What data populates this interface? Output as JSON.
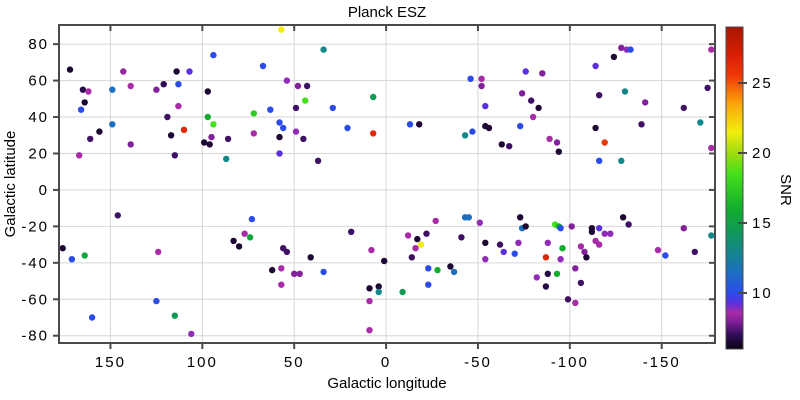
{
  "figure": {
    "title": "Planck ESZ",
    "xlabel": "Galactic longitude",
    "ylabel": "Galactic latitude",
    "colorbar_label": "SNR"
  },
  "chart_data": {
    "type": "scatter",
    "title": "Planck ESZ",
    "xlabel": "Galactic longitude",
    "ylabel": "Galactic latitude",
    "grid": true,
    "x_axis": {
      "min": -179,
      "max": 178,
      "reversed": true,
      "ticks": [
        150,
        100,
        50,
        0,
        -50,
        -100,
        -150
      ]
    },
    "y_axis": {
      "min": -84,
      "max": 90.5,
      "ticks": [
        -80,
        -60,
        -40,
        -20,
        0,
        20,
        40,
        60,
        80
      ]
    },
    "colorbar": {
      "label": "SNR",
      "min": 6,
      "max": 29,
      "ticks": [
        10,
        15,
        20,
        25
      ]
    },
    "colormap_stops": [
      [
        6,
        "#0b0210"
      ],
      [
        7,
        "#2e0d57"
      ],
      [
        8,
        "#83209b"
      ],
      [
        8.6,
        "#a82ba8"
      ],
      [
        9.3,
        "#5b30e0"
      ],
      [
        10,
        "#2a4ce8"
      ],
      [
        11.5,
        "#1d6fc0"
      ],
      [
        13,
        "#148789"
      ],
      [
        14.5,
        "#119a55"
      ],
      [
        16,
        "#13ad2d"
      ],
      [
        18.5,
        "#44e01a"
      ],
      [
        20,
        "#9fdc0e"
      ],
      [
        21.5,
        "#f2ee0a"
      ],
      [
        23.5,
        "#fba608"
      ],
      [
        25.5,
        "#f03807"
      ],
      [
        27,
        "#d81f05"
      ],
      [
        29,
        "#a81600"
      ]
    ],
    "points": [
      [
        172,
        66,
        6.5
      ],
      [
        143,
        65,
        8.3
      ],
      [
        114,
        65,
        6.5
      ],
      [
        107,
        65,
        9.3
      ],
      [
        94,
        74,
        10
      ],
      [
        165,
        55,
        6.8
      ],
      [
        162,
        54,
        8.6
      ],
      [
        149,
        55,
        11.5
      ],
      [
        139,
        57,
        8.6
      ],
      [
        125,
        55,
        8
      ],
      [
        121,
        58,
        7
      ],
      [
        113,
        58,
        10
      ],
      [
        97,
        54,
        6.5
      ],
      [
        164,
        48,
        6.5
      ],
      [
        166,
        44,
        10
      ],
      [
        113,
        46,
        8.6
      ],
      [
        119,
        40,
        7.2
      ],
      [
        97,
        40,
        16
      ],
      [
        94,
        36,
        18.5
      ],
      [
        149,
        36,
        11.5
      ],
      [
        110,
        33,
        26.5
      ],
      [
        156,
        32,
        6.5
      ],
      [
        161,
        28,
        7.2
      ],
      [
        117,
        30,
        6.5
      ],
      [
        139,
        25,
        8
      ],
      [
        99,
        26,
        6.5
      ],
      [
        96,
        25,
        6.5
      ],
      [
        95,
        29,
        8
      ],
      [
        167,
        19,
        8.6
      ],
      [
        115,
        19,
        7.2
      ],
      [
        57,
        88,
        21.5
      ],
      [
        34,
        77,
        13
      ],
      [
        67,
        68,
        10
      ],
      [
        54,
        60,
        8.8
      ],
      [
        48,
        57,
        8
      ],
      [
        43,
        57,
        7.2
      ],
      [
        44,
        49,
        18.5
      ],
      [
        72,
        42,
        17.5
      ],
      [
        63,
        44,
        10
      ],
      [
        49,
        45,
        7.2
      ],
      [
        29,
        45,
        10
      ],
      [
        7,
        51,
        14.5
      ],
      [
        58,
        37,
        10
      ],
      [
        56,
        34,
        10
      ],
      [
        49,
        32,
        8.8
      ],
      [
        58,
        29,
        6.5
      ],
      [
        45,
        28,
        7.2
      ],
      [
        86,
        28,
        7.2
      ],
      [
        72,
        31,
        8.6
      ],
      [
        21,
        34,
        10
      ],
      [
        7,
        31,
        26.5
      ],
      [
        58,
        20,
        9.3
      ],
      [
        87,
        17,
        13
      ],
      [
        37,
        16,
        7.2
      ],
      [
        -46,
        61,
        10
      ],
      [
        -52,
        61,
        8.6
      ],
      [
        -52,
        57,
        8
      ],
      [
        -76,
        65,
        9.3
      ],
      [
        -85,
        64,
        8
      ],
      [
        -74,
        53,
        8
      ],
      [
        -79,
        49,
        7.2
      ],
      [
        -83,
        45,
        6.5
      ],
      [
        -80,
        40,
        8.6
      ],
      [
        -13,
        36,
        10
      ],
      [
        -18,
        36,
        6.5
      ],
      [
        -54,
        46,
        9.3
      ],
      [
        -73,
        35,
        10
      ],
      [
        -54,
        35,
        6.5
      ],
      [
        -56,
        34,
        6.5
      ],
      [
        -47,
        32,
        10
      ],
      [
        -43,
        30,
        13
      ],
      [
        -63,
        25,
        6.5
      ],
      [
        -67,
        24,
        7.2
      ],
      [
        -89,
        28,
        8.6
      ],
      [
        -93,
        26,
        8
      ],
      [
        -94,
        21,
        6.5
      ],
      [
        -128,
        78,
        8
      ],
      [
        -131,
        77,
        8.8
      ],
      [
        -133,
        77,
        10
      ],
      [
        -124,
        73,
        6.5
      ],
      [
        -114,
        68,
        9.3
      ],
      [
        -177,
        77,
        8.6
      ],
      [
        -116,
        52,
        7.2
      ],
      [
        -130,
        54,
        13
      ],
      [
        -141,
        48,
        8
      ],
      [
        -162,
        45,
        7.2
      ],
      [
        -175,
        56,
        7.2
      ],
      [
        -171,
        37,
        13
      ],
      [
        -139,
        36,
        7.2
      ],
      [
        -114,
        34,
        6.5
      ],
      [
        -119,
        26,
        25.5
      ],
      [
        -116,
        16,
        10
      ],
      [
        -128,
        16,
        13
      ],
      [
        -177,
        23,
        8.6
      ],
      [
        146,
        -14,
        7.2
      ],
      [
        176,
        -32,
        6.5
      ],
      [
        171,
        -38,
        10
      ],
      [
        164,
        -36,
        15.5
      ],
      [
        124,
        -34,
        8.6
      ],
      [
        125,
        -61,
        10
      ],
      [
        160,
        -70,
        10
      ],
      [
        115,
        -69,
        14.5
      ],
      [
        106,
        -79,
        8.8
      ],
      [
        73,
        -16,
        10
      ],
      [
        77,
        -24,
        8.6
      ],
      [
        74,
        -26,
        15.5
      ],
      [
        83,
        -28,
        6.5
      ],
      [
        80,
        -31,
        6.5
      ],
      [
        56,
        -32,
        7.2
      ],
      [
        54,
        -34,
        7.2
      ],
      [
        41,
        -37,
        6.5
      ],
      [
        57,
        -43,
        8.6
      ],
      [
        62,
        -44,
        6.5
      ],
      [
        50,
        -46,
        8
      ],
      [
        47,
        -46,
        8
      ],
      [
        34,
        -45,
        10
      ],
      [
        57,
        -52,
        8.6
      ],
      [
        19,
        -23,
        7.2
      ],
      [
        8,
        -33,
        8.6
      ],
      [
        1,
        -39,
        6.5
      ],
      [
        9,
        -54,
        6.5
      ],
      [
        4,
        -53,
        6.5
      ],
      [
        4,
        -56,
        13
      ],
      [
        9,
        -61,
        8.6
      ],
      [
        9,
        -77,
        8.6
      ],
      [
        -27,
        -17,
        8.6
      ],
      [
        -43,
        -15,
        11.5
      ],
      [
        -45,
        -15,
        11.5
      ],
      [
        -51,
        -18,
        8.8
      ],
      [
        -73,
        -15,
        6.5
      ],
      [
        -74,
        -21,
        11.5
      ],
      [
        -76,
        -20,
        6.5
      ],
      [
        -92,
        -19,
        18.5
      ],
      [
        -94,
        -20,
        16
      ],
      [
        -95,
        -21,
        10
      ],
      [
        -12,
        -25,
        8.6
      ],
      [
        -17,
        -27,
        6.5
      ],
      [
        -22,
        -24,
        7.2
      ],
      [
        -19,
        -30,
        21.5
      ],
      [
        -16,
        -32,
        8.6
      ],
      [
        -14,
        -37,
        7.2
      ],
      [
        -41,
        -26,
        7.2
      ],
      [
        -54,
        -29,
        6.5
      ],
      [
        -62,
        -30,
        7.2
      ],
      [
        -72,
        -29,
        8.8
      ],
      [
        -64,
        -34,
        9.3
      ],
      [
        -70,
        -35,
        10
      ],
      [
        -88,
        -29,
        8.8
      ],
      [
        -87,
        -37,
        26.5
      ],
      [
        -96,
        -32,
        16
      ],
      [
        -95,
        -38,
        8.8
      ],
      [
        -54,
        -38,
        8.8
      ],
      [
        -35,
        -42,
        6.5
      ],
      [
        -23,
        -43,
        10
      ],
      [
        -28,
        -44,
        16
      ],
      [
        -37,
        -45,
        11.5
      ],
      [
        -23,
        -52,
        10
      ],
      [
        -9,
        -56,
        14.5
      ],
      [
        -82,
        -48,
        8.8
      ],
      [
        -88,
        -46,
        6.8
      ],
      [
        -93,
        -46,
        16
      ],
      [
        -87,
        -53,
        6.8
      ],
      [
        -101,
        -20,
        8
      ],
      [
        -112,
        -21,
        6.5
      ],
      [
        -112,
        -23,
        6.5
      ],
      [
        -116,
        -21,
        9.3
      ],
      [
        -119,
        -24,
        8.8
      ],
      [
        -122,
        -24,
        8.8
      ],
      [
        -129,
        -15,
        6.5
      ],
      [
        -132,
        -19,
        7.2
      ],
      [
        -114,
        -28,
        8.6
      ],
      [
        -116,
        -30,
        8.6
      ],
      [
        -106,
        -31,
        8.6
      ],
      [
        -108,
        -34,
        8
      ],
      [
        -109,
        -37,
        6.5
      ],
      [
        -148,
        -33,
        8.6
      ],
      [
        -152,
        -36,
        10
      ],
      [
        -162,
        -21,
        8
      ],
      [
        -177,
        -25,
        13
      ],
      [
        -168,
        -34,
        7.2
      ],
      [
        -103,
        -43,
        8
      ],
      [
        -106,
        -51,
        7.2
      ],
      [
        -99,
        -60,
        7.2
      ],
      [
        -103,
        -62,
        8.6
      ]
    ]
  }
}
